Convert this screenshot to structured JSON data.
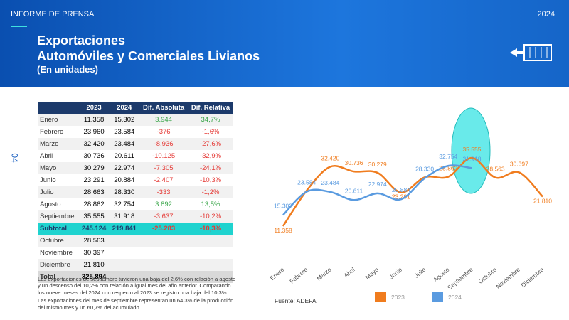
{
  "header": {
    "label": "INFORME DE PRENSA",
    "year": "2024",
    "title": [
      "Exportaciones",
      "Automóviles y Comerciales Livianos"
    ],
    "subtitle": "(En unidades)",
    "page": "04"
  },
  "table": {
    "columns": [
      "2023",
      "2024",
      "Dif. Absoluta",
      "Dif. Relativa"
    ],
    "rows": [
      [
        "Enero",
        "11.358",
        "15.302",
        "3.944",
        "34,7%"
      ],
      [
        "Febrero",
        "23.960",
        "23.584",
        "-376",
        "-1,6%"
      ],
      [
        "Marzo",
        "32.420",
        "23.484",
        "-8.936",
        "-27,6%"
      ],
      [
        "Abril",
        "30.736",
        "20.611",
        "-10.125",
        "-32,9%"
      ],
      [
        "Mayo",
        "30.279",
        "22.974",
        "-7.305",
        "-24,1%"
      ],
      [
        "Junio",
        "23.291",
        "20.884",
        "-2.407",
        "-10,3%"
      ],
      [
        "Julio",
        "28.663",
        "28.330",
        "-333",
        "-1,2%"
      ],
      [
        "Agosto",
        "28.862",
        "32.754",
        "3.892",
        "13,5%"
      ],
      [
        "Septiembre",
        "35.555",
        "31.918",
        "-3.637",
        "-10,2%"
      ],
      [
        "Subtotal",
        "245.124",
        "219.841",
        "-25.283",
        "-10,3%"
      ],
      [
        "Octubre",
        "28.563"
      ],
      [
        "Noviembre",
        "30.397"
      ],
      [
        "Diciembre",
        "21.810"
      ],
      [
        "Total",
        "325.894"
      ]
    ]
  },
  "notes": [
    "Las exportaciones de septiembre tuvieron una baja del 2,6% con relación a agosto y un descenso del 10,2% con relación a igual mes del año anterior. Comparando los nueve meses del 2024 con respecto al 2023 se registro una baja del 10,3%",
    "Las exportaciones del mes de septiembre representan un 64,3% de la producción del mismo mes y un 60,7% del acumulado"
  ],
  "source": "Fuente: ADEFA",
  "chart_data": {
    "type": "line",
    "categories": [
      "Enero",
      "Febrero",
      "Marzo",
      "Abril",
      "Mayo",
      "Junio",
      "Julio",
      "Agosto",
      "Septiembre",
      "Octubre",
      "Noviembre",
      "Diciembre"
    ],
    "series": [
      {
        "name": "2023",
        "color": "#f07c1e",
        "values": [
          11358,
          23960,
          32420,
          30736,
          30279,
          23291,
          28663,
          28862,
          35555,
          28563,
          30397,
          21810
        ],
        "value_labels": [
          "11.358",
          null,
          "32.420",
          "30.736",
          "30.279",
          "23.291",
          null,
          "28.862",
          "35.555",
          "28.563",
          "30.397",
          "21.810"
        ]
      },
      {
        "name": "2024",
        "color": "#5a9be0",
        "values": [
          15302,
          23584,
          23484,
          20611,
          22974,
          20884,
          28330,
          32754,
          31918,
          null,
          null,
          null
        ],
        "value_labels": [
          "15.302",
          "23.584",
          "23.484",
          "20.611",
          "22.974",
          "20.884",
          "28.330",
          "32.754",
          "31.918",
          null,
          null,
          null
        ]
      }
    ]
  }
}
